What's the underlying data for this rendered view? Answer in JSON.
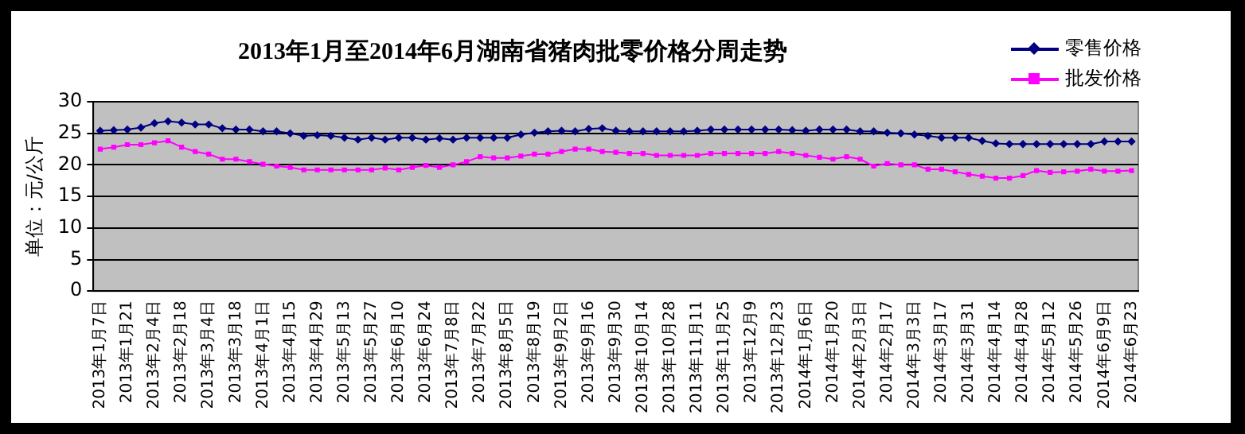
{
  "chart_data": {
    "type": "line",
    "title": "2013年1月至2014年6月湖南省猪肉批零价格分周走势",
    "ylabel": "单位：元/公斤",
    "categories": [
      "2013年1月7日",
      null,
      "2013年1月21",
      null,
      "2013年2月4日",
      null,
      "2013年2月18",
      null,
      "2013年3月4日",
      null,
      "2013年3月18",
      null,
      "2013年4月1日",
      null,
      "2013年4月15",
      null,
      "2013年4月29",
      null,
      "2013年5月13",
      null,
      "2013年5月27",
      null,
      "2013年6月10",
      null,
      "2013年6月24",
      null,
      "2013年7月8日",
      null,
      "2013年7月22",
      null,
      "2013年8月5日",
      null,
      "2013年8月19",
      null,
      "2013年9月2日",
      null,
      "2013年9月16",
      null,
      "2013年9月30",
      null,
      "2013年10月14",
      null,
      "2013年10月28",
      null,
      "2013年11月11",
      null,
      "2013年11月25",
      null,
      "2013年12月9",
      null,
      "2013年12月23",
      null,
      "2014年1月6日",
      null,
      "2014年1月20",
      null,
      "2014年2月3日",
      null,
      "2014年2月17",
      null,
      "2014年3月3日",
      null,
      "2014年3月17",
      null,
      "2014年3月31",
      null,
      "2014年4月14",
      null,
      "2014年4月28",
      null,
      "2014年5月12",
      null,
      "2014年5月26",
      null,
      "2014年6月9日",
      null,
      "2014年6月23"
    ],
    "series": [
      {
        "name": "零售价格",
        "color": "#000080",
        "marker": "diamond",
        "values": [
          25.4,
          25.5,
          25.6,
          25.9,
          26.6,
          26.9,
          26.7,
          26.4,
          26.4,
          25.8,
          25.6,
          25.6,
          25.3,
          25.3,
          25.0,
          24.6,
          24.7,
          24.6,
          24.3,
          24.0,
          24.3,
          24.0,
          24.3,
          24.3,
          24.0,
          24.2,
          24.0,
          24.3,
          24.3,
          24.3,
          24.3,
          24.8,
          25.1,
          25.3,
          25.4,
          25.3,
          25.7,
          25.8,
          25.4,
          25.3,
          25.3,
          25.3,
          25.3,
          25.3,
          25.4,
          25.6,
          25.6,
          25.6,
          25.6,
          25.6,
          25.6,
          25.5,
          25.4,
          25.6,
          25.6,
          25.6,
          25.3,
          25.3,
          25.1,
          25.0,
          24.8,
          24.6,
          24.3,
          24.3,
          24.3,
          23.8,
          23.4,
          23.3,
          23.3,
          23.3,
          23.3,
          23.3,
          23.3,
          23.3,
          23.7,
          23.7,
          23.7
        ]
      },
      {
        "name": "批发价格",
        "color": "#ff00ff",
        "marker": "square",
        "values": [
          22.5,
          22.8,
          23.2,
          23.2,
          23.5,
          23.8,
          22.8,
          22.1,
          21.7,
          20.9,
          20.9,
          20.5,
          20.1,
          19.8,
          19.6,
          19.2,
          19.2,
          19.2,
          19.2,
          19.2,
          19.2,
          19.5,
          19.2,
          19.6,
          19.9,
          19.6,
          20.0,
          20.5,
          21.3,
          21.1,
          21.1,
          21.4,
          21.7,
          21.7,
          22.1,
          22.5,
          22.5,
          22.1,
          22.0,
          21.8,
          21.8,
          21.5,
          21.5,
          21.5,
          21.5,
          21.8,
          21.8,
          21.8,
          21.8,
          21.8,
          22.1,
          21.8,
          21.5,
          21.2,
          20.9,
          21.3,
          20.9,
          19.8,
          20.2,
          20.0,
          20.0,
          19.3,
          19.3,
          18.9,
          18.5,
          18.2,
          17.9,
          17.9,
          18.3,
          19.1,
          18.8,
          18.9,
          19.0,
          19.3,
          19.0,
          19.0,
          19.1
        ]
      }
    ],
    "ylim": [
      0,
      30
    ],
    "yticks": [
      0,
      5,
      10,
      15,
      20,
      25,
      30
    ],
    "grid": "y",
    "legend": "top right",
    "line_style": "solid"
  }
}
